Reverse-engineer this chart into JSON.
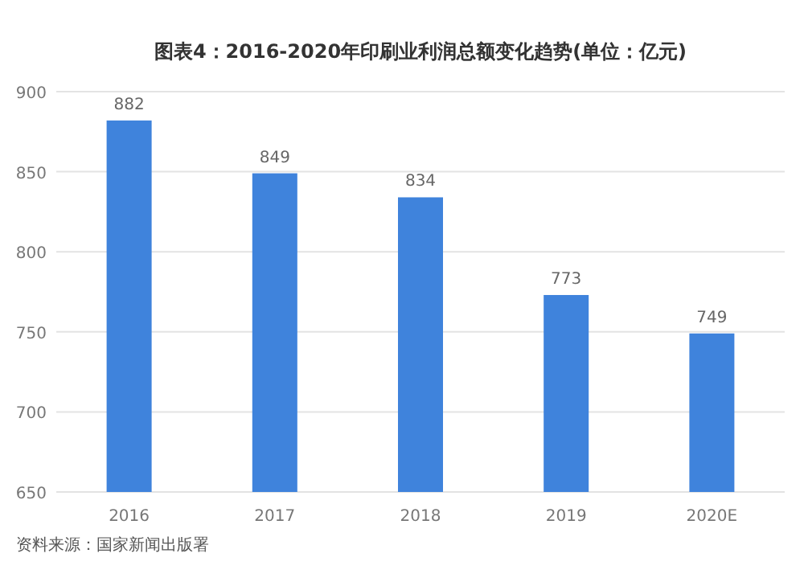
{
  "chart_data": {
    "type": "bar",
    "title": "图表4：2016-2020年印刷业利润总额变化趋势(单位：亿元)",
    "categories": [
      "2016",
      "2017",
      "2018",
      "2019",
      "2020E"
    ],
    "values": [
      882,
      849,
      834,
      773,
      749
    ],
    "color": "#3f83dc",
    "ylim": [
      650,
      900
    ],
    "yticks": [
      650,
      700,
      750,
      800,
      850,
      900
    ],
    "grid": "y",
    "data_labels": true,
    "annotations": [
      "资料来源：国家新闻出版署"
    ]
  }
}
